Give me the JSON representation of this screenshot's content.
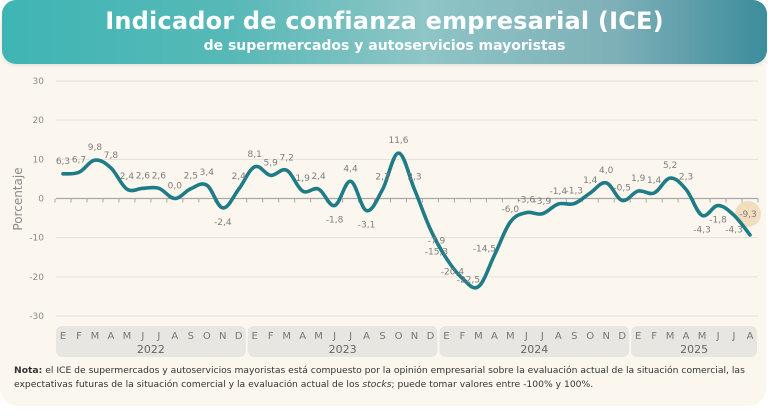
{
  "header": {
    "title": "Indicador de confianza empresarial (ICE)",
    "subtitle": "de supermercados y autoservicios mayoristas"
  },
  "colors": {
    "line": "#1f7b86",
    "highlight": "#f0d9b5",
    "grid": "#e6e1d6",
    "axis": "#a8a8a8",
    "year_band": "#e8e6e1"
  },
  "note": {
    "label": "Nota:",
    "text_before_italic": " el ICE de supermercados y autoservicios mayoristas está compuesto por la opinión empresarial sobre la evaluación actual de la situación comercial, las expectativas futuras de la situación comercial y la evaluación actual de los ",
    "italic": "stocks",
    "text_after_italic": "; puede tomar valores entre -100% y 100%."
  },
  "chart_data": {
    "type": "line",
    "title": "Indicador de confianza empresarial (ICE) de supermercados y autoservicios mayoristas",
    "xlabel": "",
    "ylabel": "Porcentaje",
    "ylim": [
      -30,
      30
    ],
    "yticks": [
      30,
      20,
      10,
      0,
      -10,
      -20,
      -30
    ],
    "grid": true,
    "legend": "none",
    "years": [
      {
        "label": "2022",
        "months": [
          "E",
          "F",
          "M",
          "A",
          "M",
          "J",
          "J",
          "A",
          "S",
          "O",
          "N",
          "D"
        ]
      },
      {
        "label": "2023",
        "months": [
          "E",
          "F",
          "M",
          "A",
          "M",
          "J",
          "J",
          "A",
          "S",
          "O",
          "N",
          "D"
        ]
      },
      {
        "label": "2024",
        "months": [
          "E",
          "F",
          "M",
          "A",
          "M",
          "J",
          "J",
          "A",
          "S",
          "O",
          "N",
          "D"
        ]
      },
      {
        "label": "2025",
        "months": [
          "E",
          "F",
          "M",
          "A",
          "M",
          "J",
          "J",
          "A"
        ]
      }
    ],
    "series": [
      {
        "name": "ICE",
        "values": [
          6.3,
          6.7,
          9.8,
          7.8,
          2.4,
          2.6,
          2.6,
          0.0,
          2.5,
          3.4,
          -2.4,
          2.4,
          8.1,
          5.9,
          7.2,
          1.9,
          2.4,
          -1.8,
          4.4,
          -3.1,
          2.3,
          11.6,
          2.3,
          -7.9,
          -15.3,
          -20.4,
          -22.5,
          -14.5,
          -6.0,
          -3.6,
          -3.9,
          -1.4,
          -1.3,
          1.4,
          4.0,
          -0.5,
          1.9,
          1.4,
          5.2,
          2.3,
          -4.3,
          -1.8,
          -4.3,
          -9.3
        ],
        "labels": [
          "6,3",
          "6,7",
          "9,8",
          "7,8",
          "2,4",
          "2,6",
          "2,6",
          "0,0",
          "2,5",
          "3,4",
          "-2,4",
          "2,4",
          "8,1",
          "5,9",
          "7,2",
          "1,9",
          "2,4",
          "-1,8",
          "4,4",
          "-3,1",
          "2,3",
          "11,6",
          "2,3",
          "-7,9",
          "-15,3",
          "-20,4",
          "-22,5",
          "-14,5",
          "-6,0",
          "-3,6",
          "-3,9",
          "-1,4",
          "-1,3",
          "1,4",
          "4,0",
          "-0,5",
          "1,9",
          "1,4",
          "5,2",
          "2,3",
          "-4,3",
          "-1,8",
          "-4,3",
          "-9,3"
        ]
      }
    ],
    "highlighted_point": {
      "index": 43,
      "label": "-9,3"
    }
  }
}
